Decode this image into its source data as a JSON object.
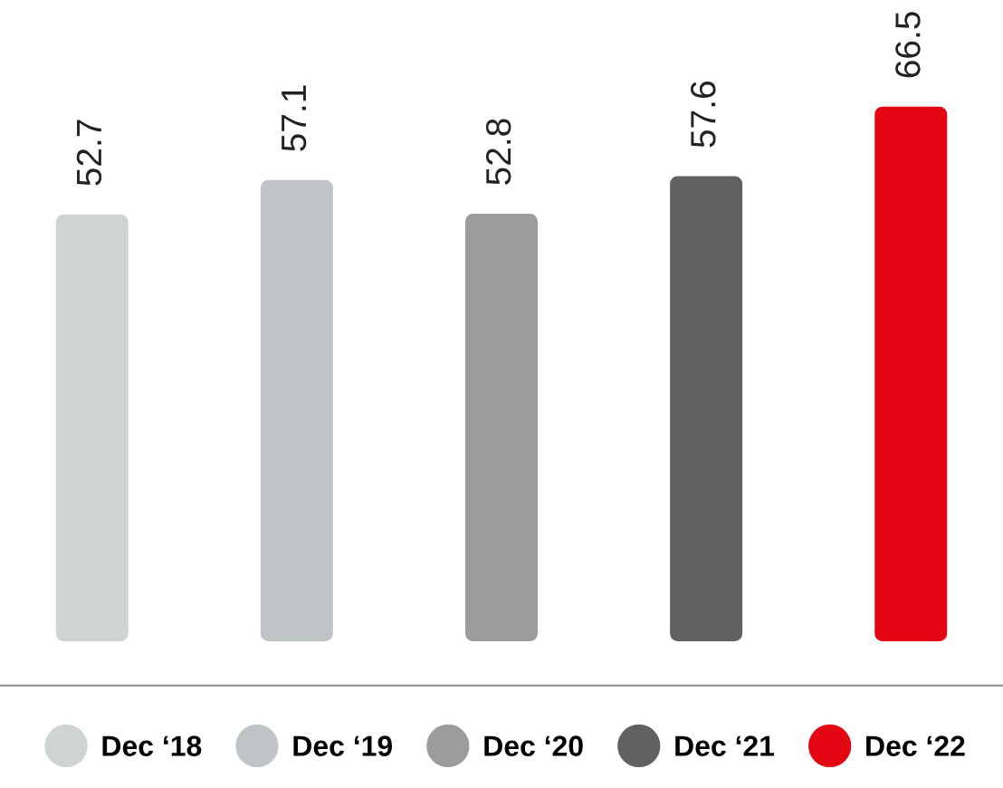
{
  "chart_data": {
    "type": "bar",
    "categories": [
      "Dec ‘18",
      "Dec ‘19",
      "Dec ‘20",
      "Dec ‘21",
      "Dec ‘22"
    ],
    "values": [
      52.7,
      57.1,
      52.8,
      57.6,
      66.5
    ],
    "colors": [
      "#d0d3d4",
      "#bfc5c6",
      "#9c9c9a",
      "#616161",
      "#e30613"
    ],
    "data_labels": true,
    "tick_labels": false
  }
}
